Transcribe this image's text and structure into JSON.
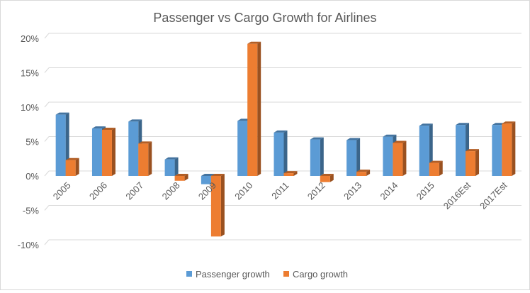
{
  "chart_data": {
    "type": "bar",
    "title": "Passenger vs Cargo Growth for Airlines",
    "xlabel": "",
    "ylabel": "",
    "categories": [
      "2005",
      "2006",
      "2007",
      "2008",
      "2009",
      "2010",
      "2011",
      "2012",
      "2013",
      "2014",
      "2015",
      "2016Est",
      "2017Est"
    ],
    "series": [
      {
        "name": "Passenger growth",
        "color": "#5b9bd5",
        "values": [
          8.9,
          6.9,
          7.9,
          2.4,
          -1.2,
          8.0,
          6.3,
          5.3,
          5.2,
          5.7,
          7.3,
          7.4,
          7.4
        ]
      },
      {
        "name": "Cargo growth",
        "color": "#ed7d31",
        "values": [
          2.3,
          6.7,
          4.7,
          -0.7,
          -8.8,
          19.2,
          0.4,
          -0.9,
          0.6,
          4.8,
          1.9,
          3.6,
          7.6
        ]
      }
    ],
    "ylim": [
      -10,
      20
    ],
    "yticks": [
      -10,
      -5,
      0,
      5,
      10,
      15,
      20
    ],
    "ytick_labels": [
      "-10%",
      "-5%",
      "0%",
      "5%",
      "10%",
      "15%",
      "20%"
    ],
    "grid": true,
    "legend": "bottom",
    "style": "3d-clustered-column"
  }
}
